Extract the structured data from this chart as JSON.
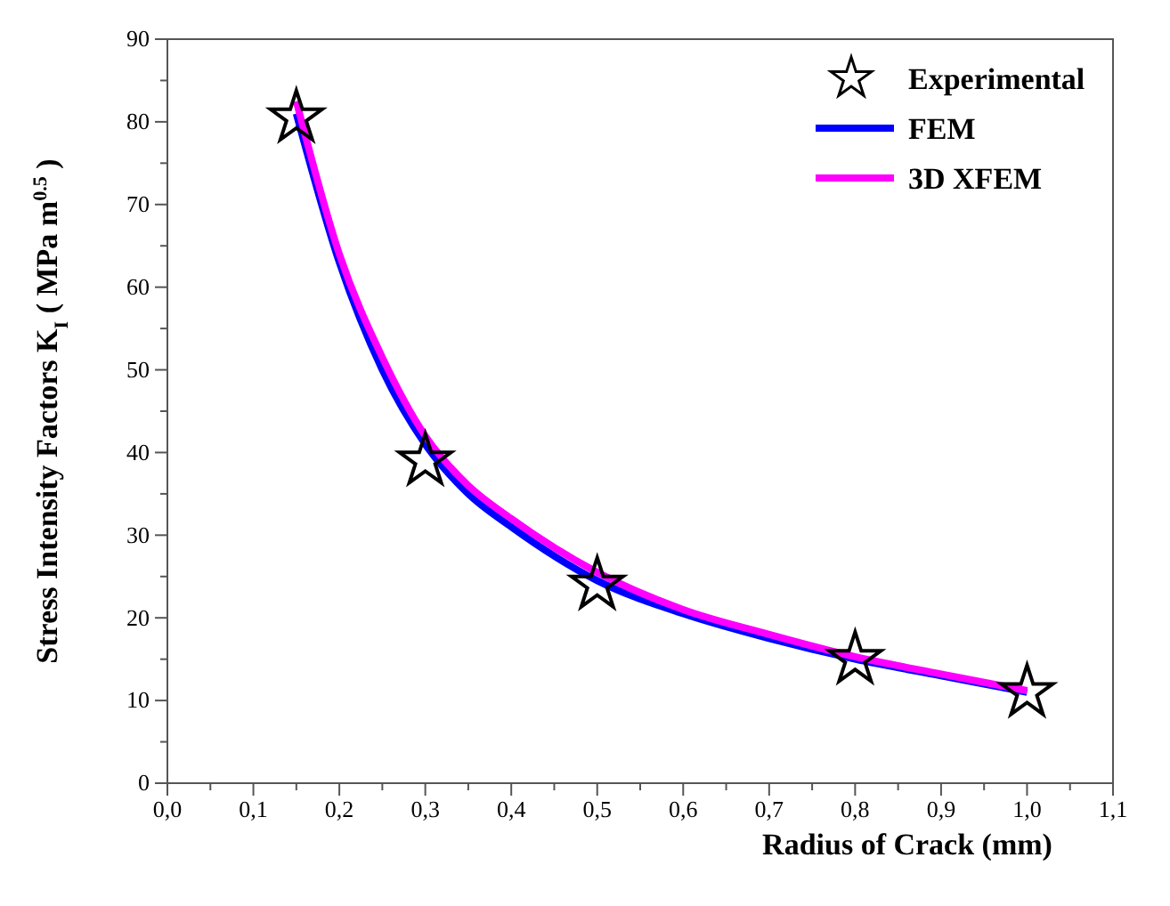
{
  "chart_data": {
    "type": "line",
    "xlabel": "Radius of Crack (mm)",
    "ylabel": "Stress Intensity Factors K$_{I}$  ( MPa m$^{0.5}$ )",
    "xlim": [
      0,
      1.1
    ],
    "xticks": [
      {
        "value": 0,
        "label": "0,0"
      },
      {
        "value": 0.1,
        "label": "0,1"
      },
      {
        "value": 0.2,
        "label": "0,2"
      },
      {
        "value": 0.3,
        "label": "0,3"
      },
      {
        "value": 0.4,
        "label": "0,4"
      },
      {
        "value": 0.5,
        "label": "0,5"
      },
      {
        "value": 0.6,
        "label": "0,6"
      },
      {
        "value": 0.7,
        "label": "0,7"
      },
      {
        "value": 0.8,
        "label": "0,8"
      },
      {
        "value": 0.9,
        "label": "0,9"
      },
      {
        "value": 1.0,
        "label": "1,0"
      },
      {
        "value": 1.1,
        "label": "1,1"
      }
    ],
    "ylim": [
      0,
      90
    ],
    "yticks": [
      0,
      10,
      20,
      30,
      40,
      50,
      60,
      70,
      80,
      90
    ],
    "grid": false,
    "legend": "top right",
    "series": [
      {
        "name": "Experimental",
        "type": "scatter",
        "marker": "star",
        "color": "#000000",
        "x": [
          0.15,
          0.3,
          0.5,
          0.8,
          1.0
        ],
        "values": [
          80.5,
          39,
          24,
          15,
          11
        ]
      },
      {
        "name": "FEM",
        "color": "#0000ff",
        "x": [
          0.15,
          0.2,
          0.25,
          0.3,
          0.35,
          0.4,
          0.5,
          0.6,
          0.7,
          0.8,
          0.9,
          1.0
        ],
        "values": [
          81,
          63,
          50,
          41,
          35,
          31,
          24.5,
          20.5,
          17.5,
          15,
          13,
          11
        ]
      },
      {
        "name": "3D XFEM",
        "color": "#ff00ff",
        "x": [
          0.15,
          0.2,
          0.25,
          0.3,
          0.35,
          0.4,
          0.5,
          0.6,
          0.7,
          0.8,
          0.9,
          1.0
        ],
        "values": [
          82.5,
          64,
          51.5,
          42,
          36,
          32,
          25.5,
          21,
          18,
          15.3,
          13.2,
          11.2
        ]
      }
    ]
  }
}
